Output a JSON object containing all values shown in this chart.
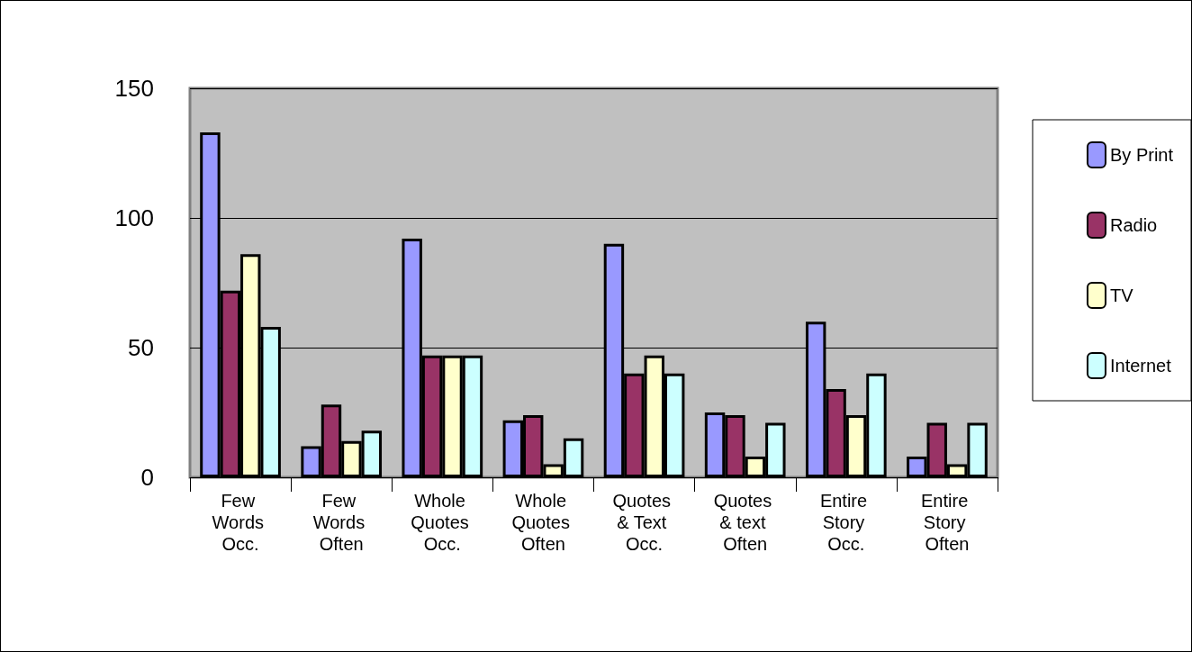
{
  "chart_data": {
    "type": "bar",
    "categories": [
      "Few Words Occ.",
      "Few Words Often",
      "Whole Quotes Occ.",
      "Whole Quotes Often",
      "Quotes & Text Occ.",
      "Quotes & text Often",
      "Entire Story Occ.",
      "Entire Story Often"
    ],
    "series": [
      {
        "name": "By Print",
        "color": "#9999ff",
        "values": [
          133,
          12,
          92,
          22,
          90,
          25,
          60,
          8
        ]
      },
      {
        "name": "Radio",
        "color": "#993366",
        "values": [
          72,
          28,
          47,
          24,
          40,
          24,
          34,
          21
        ]
      },
      {
        "name": "TV",
        "color": "#ffffcc",
        "values": [
          86,
          14,
          47,
          5,
          47,
          8,
          24,
          5
        ]
      },
      {
        "name": "Internet",
        "color": "#ccffff",
        "values": [
          58,
          18,
          47,
          15,
          40,
          21,
          40,
          21
        ]
      }
    ],
    "ylim": [
      0,
      150
    ],
    "yticks": [
      0,
      50,
      100,
      150
    ],
    "grid": "y",
    "legend": "right"
  }
}
